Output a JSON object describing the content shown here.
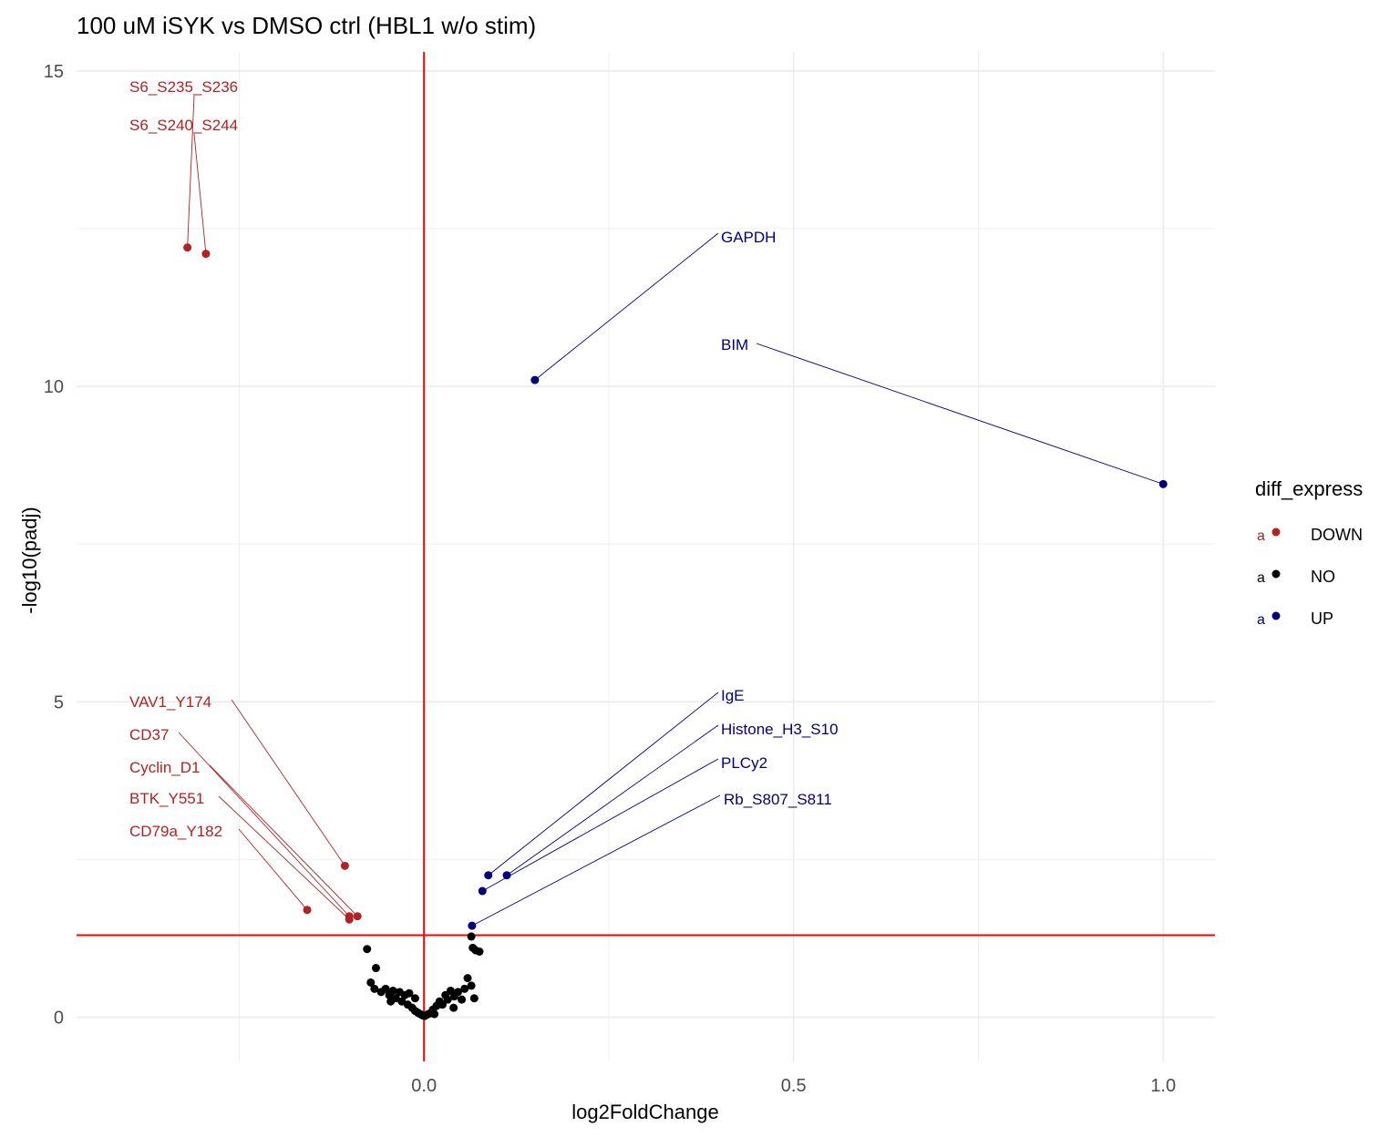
{
  "chart_data": {
    "type": "scatter",
    "title": "100 uM iSYK vs DMSO ctrl (HBL1 w/o stim)",
    "xlabel": "log2FoldChange",
    "ylabel": "-log10(padj)",
    "xlim": [
      -0.47,
      1.07
    ],
    "ylim": [
      -0.7,
      15.3
    ],
    "x_ticks": [
      0.0,
      0.5,
      1.0
    ],
    "x_tick_labels": [
      "0.0",
      "0.5",
      "1.0"
    ],
    "y_ticks": [
      0,
      5,
      10,
      15
    ],
    "y_tick_labels": [
      "0",
      "5",
      "10",
      "15"
    ],
    "grid": true,
    "threshold_lines": {
      "x": 0.0,
      "y": 1.3,
      "color": "#ff0000"
    },
    "legend": {
      "title": "diff_express",
      "position": "right",
      "glyph": "a",
      "items": [
        {
          "label": "DOWN",
          "color": "#b22222"
        },
        {
          "label": "NO",
          "color": "#000000"
        },
        {
          "label": "UP",
          "color": "#000080"
        }
      ]
    },
    "series": [
      {
        "name": "DOWN",
        "color": "#b22222",
        "points": [
          {
            "x": -0.32,
            "y": 12.2,
            "label": "S6_S235_S236"
          },
          {
            "x": -0.295,
            "y": 12.1,
            "label": "S6_S240_S244"
          },
          {
            "x": -0.107,
            "y": 2.4,
            "label": "VAV1_Y174"
          },
          {
            "x": -0.101,
            "y": 1.6,
            "label": "CD37"
          },
          {
            "x": -0.09,
            "y": 1.6,
            "label": "Cyclin_D1"
          },
          {
            "x": -0.101,
            "y": 1.55,
            "label": "BTK_Y551"
          },
          {
            "x": -0.158,
            "y": 1.7,
            "label": "CD79a_Y182"
          }
        ]
      },
      {
        "name": "NO",
        "color": "#000000",
        "points": [
          {
            "x": -0.077,
            "y": 1.08
          },
          {
            "x": -0.065,
            "y": 0.78
          },
          {
            "x": -0.072,
            "y": 0.55
          },
          {
            "x": -0.067,
            "y": 0.45
          },
          {
            "x": -0.058,
            "y": 0.4
          },
          {
            "x": -0.052,
            "y": 0.45
          },
          {
            "x": -0.047,
            "y": 0.35
          },
          {
            "x": -0.042,
            "y": 0.42
          },
          {
            "x": -0.038,
            "y": 0.3
          },
          {
            "x": -0.033,
            "y": 0.4
          },
          {
            "x": -0.03,
            "y": 0.25
          },
          {
            "x": -0.026,
            "y": 0.35
          },
          {
            "x": -0.022,
            "y": 0.2
          },
          {
            "x": -0.02,
            "y": 0.38
          },
          {
            "x": -0.016,
            "y": 0.15
          },
          {
            "x": -0.012,
            "y": 0.3
          },
          {
            "x": -0.012,
            "y": 0.1
          },
          {
            "x": -0.008,
            "y": 0.07
          },
          {
            "x": -0.005,
            "y": 0.05
          },
          {
            "x": -0.002,
            "y": 0.03
          },
          {
            "x": 0.001,
            "y": 0.02
          },
          {
            "x": 0.004,
            "y": 0.04
          },
          {
            "x": 0.008,
            "y": 0.06
          },
          {
            "x": 0.012,
            "y": 0.12
          },
          {
            "x": 0.014,
            "y": 0.05
          },
          {
            "x": 0.017,
            "y": 0.18
          },
          {
            "x": 0.021,
            "y": 0.25
          },
          {
            "x": 0.025,
            "y": 0.2
          },
          {
            "x": 0.029,
            "y": 0.35
          },
          {
            "x": 0.032,
            "y": 0.28
          },
          {
            "x": 0.036,
            "y": 0.42
          },
          {
            "x": 0.041,
            "y": 0.33
          },
          {
            "x": 0.046,
            "y": 0.4
          },
          {
            "x": 0.051,
            "y": 0.28
          },
          {
            "x": 0.055,
            "y": 0.45
          },
          {
            "x": 0.059,
            "y": 0.62
          },
          {
            "x": 0.064,
            "y": 0.5
          },
          {
            "x": 0.068,
            "y": 0.3
          },
          {
            "x": 0.064,
            "y": 1.28
          },
          {
            "x": 0.066,
            "y": 1.1
          },
          {
            "x": 0.07,
            "y": 1.06
          },
          {
            "x": 0.075,
            "y": 1.04
          },
          {
            "x": -0.045,
            "y": 0.25
          },
          {
            "x": 0.04,
            "y": 0.15
          }
        ]
      },
      {
        "name": "UP",
        "color": "#000080",
        "points": [
          {
            "x": 0.15,
            "y": 10.1,
            "label": "GAPDH"
          },
          {
            "x": 1.0,
            "y": 8.45,
            "label": "BIM"
          },
          {
            "x": 0.087,
            "y": 2.25,
            "label": "IgE"
          },
          {
            "x": 0.112,
            "y": 2.25,
            "label": "Histone_H3_S10"
          },
          {
            "x": 0.079,
            "y": 2.0,
            "label": "PLCy2"
          },
          {
            "x": 0.065,
            "y": 1.45,
            "label": "Rb_S807_S811"
          }
        ]
      }
    ]
  }
}
